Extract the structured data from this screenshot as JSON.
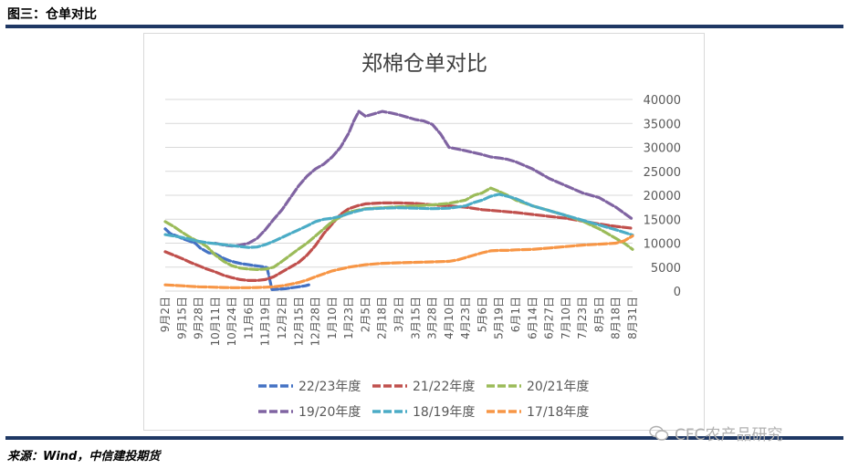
{
  "figure_title": "图三：仓单对比",
  "source": "来源：Wind，中信建投期货",
  "watermark": "CFC农产品研究",
  "colors": {
    "rule": "#1f3864",
    "grid": "#d9d9d9",
    "text": "#595959"
  },
  "chart_data": {
    "type": "line",
    "title": "郑棉仓单对比",
    "xlabel": "",
    "ylabel": "",
    "categories": [
      "9月2日",
      "9月15日",
      "9月28日",
      "10月11日",
      "10月24日",
      "11月6日",
      "11月19日",
      "12月2日",
      "12月15日",
      "12月28日",
      "1月10日",
      "1月23日",
      "2月5日",
      "2月18日",
      "3月2日",
      "3月15日",
      "3月28日",
      "4月10日",
      "4月23日",
      "5月6日",
      "5月19日",
      "6月1日",
      "6月14日",
      "6月27日",
      "7月10日",
      "7月23日",
      "8月5日",
      "8月18日",
      "8月31日"
    ],
    "ylim": [
      0,
      40000
    ],
    "yticks": [
      0,
      5000,
      10000,
      15000,
      20000,
      25000,
      30000,
      35000,
      40000
    ],
    "grid": true,
    "legend_position": "bottom",
    "series": [
      {
        "name": "22/23年度",
        "color": "#4472c4",
        "x": [
          0,
          0.3,
          0.7,
          1.0,
          1.4,
          1.8,
          2.1,
          2.6,
          3.0,
          3.4,
          3.8,
          4.2,
          4.6,
          5.0,
          5.4,
          5.8,
          6.1,
          6.4,
          6.8,
          7.2,
          7.6,
          8.0,
          8.4,
          8.6
        ],
        "y": [
          13000,
          12000,
          11500,
          11000,
          10500,
          10000,
          9000,
          8000,
          7800,
          7000,
          6400,
          6000,
          5700,
          5500,
          5300,
          5100,
          4900,
          300,
          400,
          500,
          700,
          900,
          1100,
          1300
        ]
      },
      {
        "name": "21/22年度",
        "color": "#c0504d",
        "x": [
          0,
          0.5,
          1,
          1.5,
          2,
          2.5,
          3,
          3.5,
          4,
          4.5,
          5,
          5.5,
          6,
          6.5,
          7,
          7.5,
          8,
          8.5,
          9,
          9.5,
          10,
          10.5,
          11,
          11.5,
          12,
          13,
          14,
          15,
          16,
          17,
          18,
          19,
          20,
          21,
          22,
          23,
          24,
          25,
          26,
          27,
          28
        ],
        "y": [
          8200,
          7500,
          6800,
          6000,
          5300,
          4600,
          4000,
          3300,
          2800,
          2400,
          2200,
          2200,
          2400,
          3000,
          4000,
          5000,
          6000,
          7500,
          9500,
          12000,
          14000,
          16000,
          17200,
          17800,
          18200,
          18400,
          18400,
          18300,
          18000,
          17800,
          17500,
          17000,
          16700,
          16400,
          16000,
          15600,
          15200,
          14600,
          14000,
          13500,
          13100
        ]
      },
      {
        "name": "20/21年度",
        "color": "#9bbb59",
        "x": [
          0,
          0.5,
          1,
          1.5,
          2,
          2.5,
          3,
          3.5,
          4,
          4.5,
          5,
          5.5,
          6,
          6.5,
          7,
          7.5,
          8,
          8.5,
          9,
          9.5,
          10,
          11,
          12,
          13,
          14,
          15,
          16,
          17,
          18,
          18.5,
          19,
          19.5,
          20,
          20.5,
          21,
          22,
          23,
          24,
          25,
          25.5,
          26,
          26.5,
          27,
          27.5,
          28
        ],
        "y": [
          14500,
          13500,
          12300,
          11200,
          10300,
          9300,
          7500,
          6200,
          5300,
          4800,
          4600,
          4500,
          4600,
          5000,
          6200,
          7500,
          8800,
          10000,
          11500,
          13000,
          14500,
          16500,
          17200,
          17400,
          17600,
          17800,
          18000,
          18300,
          19000,
          20000,
          20500,
          21500,
          20800,
          20000,
          19000,
          17800,
          16800,
          15800,
          14600,
          13800,
          13000,
          12000,
          11000,
          10000,
          8700
        ]
      },
      {
        "name": "19/20年度",
        "color": "#8064a2",
        "x": [
          3,
          3.5,
          4,
          4.5,
          5,
          5.5,
          6,
          6.5,
          7,
          7.5,
          8,
          8.5,
          9,
          9.5,
          10,
          10.5,
          11,
          11.3,
          11.6,
          12,
          12.5,
          13,
          13.5,
          14,
          14.5,
          15,
          15.5,
          16,
          16.5,
          17,
          18,
          19,
          19.5,
          20,
          20.5,
          21,
          22,
          23,
          24,
          25,
          26,
          27,
          28
        ],
        "y": [
          10000,
          9600,
          9400,
          9600,
          10000,
          11000,
          12800,
          15000,
          17000,
          19500,
          22000,
          24000,
          25500,
          26500,
          28000,
          30000,
          33000,
          35500,
          37500,
          36500,
          37000,
          37500,
          37200,
          36800,
          36300,
          35800,
          35500,
          34800,
          32800,
          30000,
          29300,
          28500,
          28000,
          27800,
          27500,
          27000,
          25500,
          23500,
          22000,
          20500,
          19500,
          17500,
          15000
        ]
      },
      {
        "name": "18/19年度",
        "color": "#4bacc6",
        "x": [
          0,
          0.5,
          1,
          1.5,
          2,
          2.5,
          3,
          3.5,
          4,
          4.5,
          5,
          5.5,
          6,
          6.5,
          7,
          7.5,
          8,
          8.5,
          9,
          9.5,
          10,
          10.5,
          11,
          11.5,
          12,
          13,
          14,
          15,
          16,
          17,
          18,
          18.5,
          19,
          19.5,
          20,
          20.5,
          21,
          22,
          23,
          24,
          25,
          26,
          27,
          28
        ],
        "y": [
          11800,
          11500,
          11200,
          10800,
          10400,
          10100,
          9900,
          9700,
          9500,
          9300,
          9100,
          9200,
          9700,
          10400,
          11200,
          12000,
          12800,
          13600,
          14500,
          15000,
          15200,
          15600,
          16200,
          16700,
          17100,
          17300,
          17400,
          17300,
          17200,
          17300,
          17800,
          18500,
          19000,
          19800,
          20200,
          19800,
          19300,
          17800,
          16800,
          15800,
          14800,
          13800,
          12800,
          11700
        ]
      },
      {
        "name": "17/18年度",
        "color": "#f79646",
        "x": [
          0,
          0.5,
          1,
          1.5,
          2,
          2.5,
          3,
          3.5,
          4,
          4.5,
          5,
          5.5,
          6,
          6.5,
          7,
          7.5,
          8,
          8.5,
          9,
          9.5,
          10,
          11,
          12,
          13,
          14,
          15,
          16,
          17,
          17.5,
          18,
          18.5,
          19,
          19.5,
          20,
          20.5,
          21,
          22,
          23,
          24,
          25,
          26,
          27,
          27.5,
          28
        ],
        "y": [
          1300,
          1200,
          1100,
          1000,
          900,
          850,
          800,
          750,
          700,
          700,
          700,
          750,
          800,
          900,
          1100,
          1400,
          1800,
          2300,
          3000,
          3600,
          4200,
          5000,
          5500,
          5800,
          5900,
          6000,
          6100,
          6200,
          6500,
          7000,
          7500,
          8000,
          8400,
          8500,
          8500,
          8600,
          8700,
          9000,
          9300,
          9600,
          9800,
          10000,
          10500,
          11500
        ]
      }
    ]
  }
}
